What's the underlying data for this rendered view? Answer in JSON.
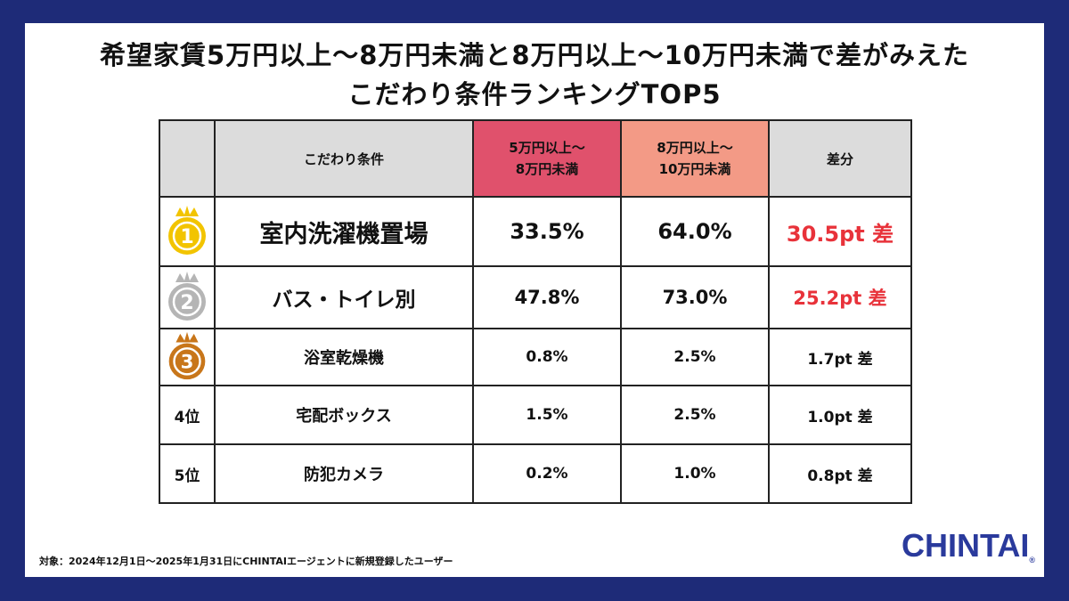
{
  "title_line1": "希望家賃5万円以上〜8万円未満と8万円以上〜10万円未満で差がみえた",
  "title_line2": "こだわり条件ランキングTOP5",
  "table": {
    "headers": {
      "condition": "こだわり条件",
      "col_a_line1": "5万円以上〜",
      "col_a_line2": "8万円未満",
      "col_b_line1": "8万円以上〜",
      "col_b_line2": "10万円未満",
      "diff": "差分"
    },
    "rows": [
      {
        "rank_icon": "gold-medal-icon",
        "rank_label": "1",
        "condition": "室内洗濯機置場",
        "col_a": "33.5%",
        "col_b": "64.0%",
        "diff": "30.5pt 差"
      },
      {
        "rank_icon": "silver-medal-icon",
        "rank_label": "2",
        "condition": "バス・トイレ別",
        "col_a": "47.8%",
        "col_b": "73.0%",
        "diff": "25.2pt 差"
      },
      {
        "rank_icon": "bronze-medal-icon",
        "rank_label": "3",
        "condition": "浴室乾燥機",
        "col_a": "0.8%",
        "col_b": "2.5%",
        "diff": "1.7pt 差"
      },
      {
        "rank_text": "4位",
        "condition": "宅配ボックス",
        "col_a": "1.5%",
        "col_b": "2.5%",
        "diff": "1.0pt 差"
      },
      {
        "rank_text": "5位",
        "condition": "防犯カメラ",
        "col_a": "0.2%",
        "col_b": "1.0%",
        "diff": "0.8pt 差"
      }
    ]
  },
  "colors": {
    "frame": "#1e2b78",
    "header_gray": "#dcdcdc",
    "header_a": "#e0516c",
    "header_b": "#f39a86",
    "diff_highlight": "#e8323a",
    "gold": "#f2c400",
    "silver": "#b5b5b5",
    "bronze": "#c8761a",
    "logo": "#2a3a9c"
  },
  "footnote": "対象：2024年12月1日〜2025年1月31日にCHINTAIエージェントに新規登録したユーザー",
  "logo_text": "CHINTAI",
  "logo_mark": "®"
}
